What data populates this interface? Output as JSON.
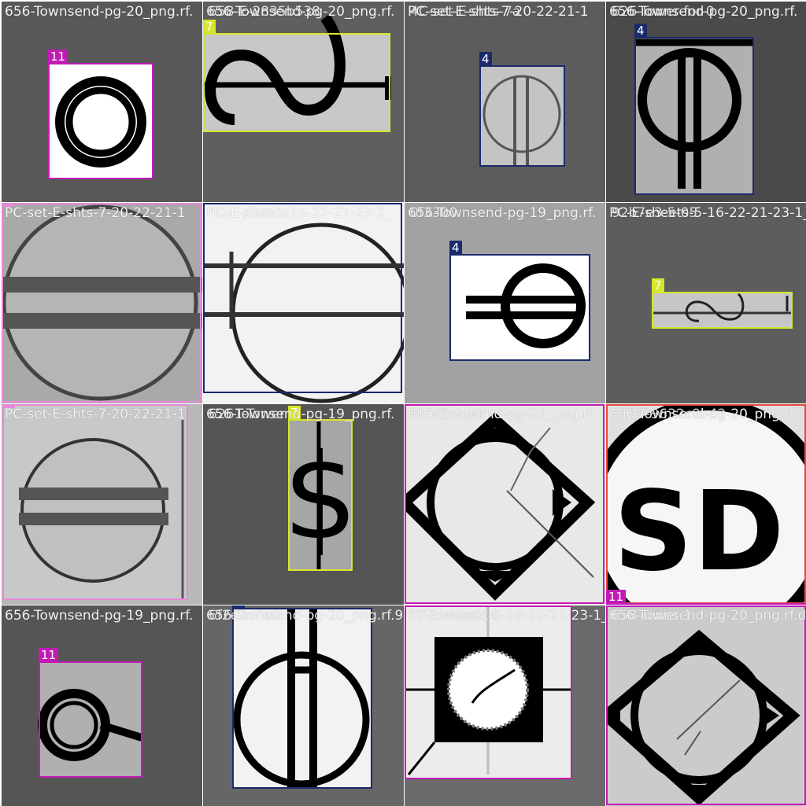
{
  "colors": {
    "class_4": "#1b2a6b",
    "class_5": "#e58ad8",
    "class_6": "#e8483c",
    "class_7": "#d6e62a",
    "class_11": "#c21bb5"
  },
  "tiles": [
    {
      "filename": "656-Townsend-pg-20_png.rf.",
      "boxes": [
        {
          "cls": "11"
        }
      ]
    },
    {
      "filename": "656-Townsend-pg-20_png.rf.",
      "filename_overlap": "658-E-2835b538",
      "boxes": [
        {
          "cls": "7"
        }
      ]
    },
    {
      "filename": "PC-set-E-shts-7-20-22-21-1",
      "filename_overlap": "4C-set-E-shts-7a",
      "boxes": [
        {
          "cls": "4"
        }
      ]
    },
    {
      "filename": "656-Townsend-pg-20_png.rf.",
      "filename_overlap": "626-Tower-for-0",
      "boxes": [
        {
          "cls": "4"
        }
      ]
    },
    {
      "filename": "PC-set-E-shts-7-20-22-21-1",
      "boxes": [
        {
          "cls": "5"
        }
      ]
    },
    {
      "filename": "PC-E-pilot-5-16-22-21-23-1_",
      "filename_overlap": "PC-E-sheets",
      "boxes": [
        {
          "cls": "4"
        }
      ]
    },
    {
      "filename": "656-Townsend-pg-19_png.rf.",
      "filename_overlap": "0f3300",
      "boxes": [
        {
          "cls": "4"
        }
      ]
    },
    {
      "filename": "PC-E-sheets-5-16-22-21-23-1_",
      "filename_overlap": "92b7e3-5-05",
      "boxes": [
        {
          "cls": "7"
        }
      ]
    },
    {
      "filename": "PC-set-E-shts-7-20-22-21-1",
      "boxes": [
        {
          "cls": "5"
        }
      ]
    },
    {
      "filename": "656-Townsend-pg-19_png.rf.",
      "filename_overlap": "6261-Tower",
      "boxes": [
        {
          "cls": "7"
        }
      ]
    },
    {
      "filename": "656-Townsend-pg-20_png.rf.",
      "filename_overlap": "6f9a2c1b8",
      "boxes": [
        {
          "cls": "11"
        }
      ]
    },
    {
      "filename": "656-Townsend-pg-20_png.rf.",
      "filename_overlap": "5187-9632c0b42",
      "boxes": [
        {
          "cls": "6"
        },
        {
          "cls": "11"
        }
      ]
    },
    {
      "filename": "656-Townsend-pg-19_png.rf.",
      "boxes": [
        {
          "cls": "11"
        }
      ]
    },
    {
      "filename": "656-Townsend-pg-20_png.rf.9a2",
      "filename_overlap": "6f2e5c7e0",
      "boxes": [
        {
          "cls": "4"
        }
      ]
    },
    {
      "filename": "PC-E-sheets-5-16-22-21-23-1_",
      "filename_overlap": "7F2d-e2a6c4",
      "boxes": [
        {
          "cls": "11"
        }
      ]
    },
    {
      "filename": "656-Townsend-pg-20_png.rf.d0a",
      "filename_overlap": "658-Tower-1",
      "boxes": []
    }
  ]
}
